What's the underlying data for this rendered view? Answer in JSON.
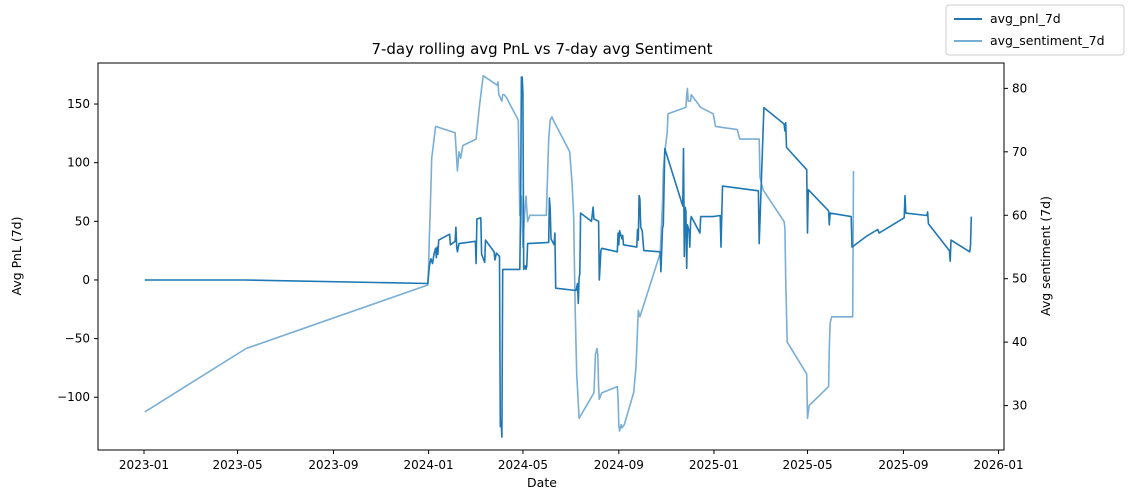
{
  "chart_data": {
    "type": "line",
    "title": "7-day rolling avg PnL vs 7-day avg Sentiment",
    "xlabel": "Date",
    "ylabel": "Avg PnL (7d)",
    "y2label": "Avg sentiment (7d)",
    "xlim": [
      "2022-11-03",
      "2026-01-08"
    ],
    "ylim": [
      -145,
      185
    ],
    "y2lim": [
      23,
      84
    ],
    "x_ticks": [
      "2023-01",
      "2023-05",
      "2023-09",
      "2024-01",
      "2024-05",
      "2024-09",
      "2025-01",
      "2025-05",
      "2025-09",
      "2026-01"
    ],
    "y_ticks": [
      -100,
      -50,
      0,
      50,
      100,
      150
    ],
    "y2_ticks": [
      30,
      40,
      50,
      60,
      70,
      80
    ],
    "grid": false,
    "legend_position": "upper-right-outside",
    "colors": {
      "avg_pnl_7d": "#1f77b4",
      "avg_sentiment_7d": "#79aed6"
    },
    "series": [
      {
        "name": "avg_pnl_7d",
        "axis": "left",
        "color": "#1f77b4",
        "points": [
          [
            "2023-01-02",
            0
          ],
          [
            "2023-05-10",
            0
          ],
          [
            "2023-12-31",
            -3
          ],
          [
            "2024-01-02",
            12
          ],
          [
            "2024-01-04",
            18
          ],
          [
            "2024-01-06",
            14
          ],
          [
            "2024-01-08",
            22
          ],
          [
            "2024-01-10",
            27
          ],
          [
            "2024-01-11",
            19
          ],
          [
            "2024-01-12",
            28
          ],
          [
            "2024-01-13",
            22
          ],
          [
            "2024-01-14",
            34
          ],
          [
            "2024-01-28",
            39
          ],
          [
            "2024-01-29",
            30
          ],
          [
            "2024-02-04",
            33
          ],
          [
            "2024-02-05",
            45
          ],
          [
            "2024-02-06",
            28
          ],
          [
            "2024-02-07",
            24
          ],
          [
            "2024-02-09",
            31
          ],
          [
            "2024-03-01",
            33
          ],
          [
            "2024-03-02",
            14
          ],
          [
            "2024-03-03",
            52
          ],
          [
            "2024-03-08",
            53
          ],
          [
            "2024-03-09",
            22
          ],
          [
            "2024-03-13",
            15
          ],
          [
            "2024-03-14",
            34
          ],
          [
            "2024-03-25",
            24
          ],
          [
            "2024-03-26",
            17
          ],
          [
            "2024-03-28",
            23
          ],
          [
            "2024-04-01",
            20
          ],
          [
            "2024-04-02",
            -125
          ],
          [
            "2024-04-03",
            -120
          ],
          [
            "2024-04-04",
            -134
          ],
          [
            "2024-04-05",
            9
          ],
          [
            "2024-04-27",
            9
          ],
          [
            "2024-04-28",
            60
          ],
          [
            "2024-04-29",
            173
          ],
          [
            "2024-04-30",
            173
          ],
          [
            "2024-05-01",
            160
          ],
          [
            "2024-05-02",
            9
          ],
          [
            "2024-05-04",
            12
          ],
          [
            "2024-05-05",
            9
          ],
          [
            "2024-05-06",
            12
          ],
          [
            "2024-05-07",
            31
          ],
          [
            "2024-06-03",
            32
          ],
          [
            "2024-06-04",
            70
          ],
          [
            "2024-06-05",
            60
          ],
          [
            "2024-06-06",
            35
          ],
          [
            "2024-06-10",
            30
          ],
          [
            "2024-06-11",
            40
          ],
          [
            "2024-06-12",
            -7
          ],
          [
            "2024-07-08",
            -9
          ],
          [
            "2024-07-10",
            -3
          ],
          [
            "2024-07-11",
            -20
          ],
          [
            "2024-07-12",
            2
          ],
          [
            "2024-07-13",
            5
          ],
          [
            "2024-07-14",
            57
          ],
          [
            "2024-07-28",
            50
          ],
          [
            "2024-07-30",
            62
          ],
          [
            "2024-07-31",
            52
          ],
          [
            "2024-08-06",
            50
          ],
          [
            "2024-08-07",
            0
          ],
          [
            "2024-08-09",
            25
          ],
          [
            "2024-08-10",
            27
          ],
          [
            "2024-08-30",
            24
          ],
          [
            "2024-08-31",
            40
          ],
          [
            "2024-09-01",
            30
          ],
          [
            "2024-09-02",
            42
          ],
          [
            "2024-09-05",
            35
          ],
          [
            "2024-09-06",
            38
          ],
          [
            "2024-09-07",
            30
          ],
          [
            "2024-09-24",
            28
          ],
          [
            "2024-09-25",
            43
          ],
          [
            "2024-09-26",
            34
          ],
          [
            "2024-09-27",
            72
          ],
          [
            "2024-09-28",
            69
          ],
          [
            "2024-09-29",
            45
          ],
          [
            "2024-10-01",
            42
          ],
          [
            "2024-10-03",
            25
          ],
          [
            "2024-10-24",
            24
          ],
          [
            "2024-10-25",
            7
          ],
          [
            "2024-10-27",
            44
          ],
          [
            "2024-10-28",
            47
          ],
          [
            "2024-10-30",
            112
          ],
          [
            "2024-11-22",
            63
          ],
          [
            "2024-11-23",
            112
          ],
          [
            "2024-11-24",
            20
          ],
          [
            "2024-11-25",
            62
          ],
          [
            "2024-11-26",
            59
          ],
          [
            "2024-11-27",
            10
          ],
          [
            "2024-11-28",
            47
          ],
          [
            "2024-11-30",
            42
          ],
          [
            "2024-12-01",
            28
          ],
          [
            "2024-12-02",
            50
          ],
          [
            "2024-12-03",
            54
          ],
          [
            "2024-12-14",
            40
          ],
          [
            "2024-12-15",
            54
          ],
          [
            "2024-12-31",
            54
          ],
          [
            "2025-01-09",
            55
          ],
          [
            "2025-01-10",
            28
          ],
          [
            "2025-01-11",
            56
          ],
          [
            "2025-01-12",
            80
          ],
          [
            "2025-02-27",
            76
          ],
          [
            "2025-02-28",
            31
          ],
          [
            "2025-03-06",
            147
          ],
          [
            "2025-04-01",
            133
          ],
          [
            "2025-04-02",
            127
          ],
          [
            "2025-04-03",
            134
          ],
          [
            "2025-04-04",
            113
          ],
          [
            "2025-04-30",
            94
          ],
          [
            "2025-05-01",
            40
          ],
          [
            "2025-05-02",
            77
          ],
          [
            "2025-05-28",
            59
          ],
          [
            "2025-05-29",
            47
          ],
          [
            "2025-05-30",
            57
          ],
          [
            "2025-06-26",
            54
          ],
          [
            "2025-06-27",
            28
          ],
          [
            "2025-07-15",
            37
          ],
          [
            "2025-07-30",
            43
          ],
          [
            "2025-08-01",
            40
          ],
          [
            "2025-09-02",
            53
          ],
          [
            "2025-09-03",
            72
          ],
          [
            "2025-09-04",
            57
          ],
          [
            "2025-10-01",
            55
          ],
          [
            "2025-10-02",
            58
          ],
          [
            "2025-10-03",
            48
          ],
          [
            "2025-10-30",
            25
          ],
          [
            "2025-10-31",
            16
          ],
          [
            "2025-11-01",
            34
          ],
          [
            "2025-11-25",
            24
          ],
          [
            "2025-11-26",
            29
          ],
          [
            "2025-11-27",
            54
          ]
        ]
      },
      {
        "name": "avg_sentiment_7d",
        "axis": "right",
        "color": "#79aed6",
        "points": [
          [
            "2023-01-02",
            29
          ],
          [
            "2023-05-12",
            39
          ],
          [
            "2023-12-31",
            49
          ],
          [
            "2024-01-01",
            52
          ],
          [
            "2024-01-02",
            57
          ],
          [
            "2024-01-03",
            60
          ],
          [
            "2024-01-05",
            69
          ],
          [
            "2024-01-07",
            71
          ],
          [
            "2024-01-10",
            74
          ],
          [
            "2024-02-04",
            73
          ],
          [
            "2024-02-07",
            67
          ],
          [
            "2024-02-09",
            70
          ],
          [
            "2024-02-11",
            69
          ],
          [
            "2024-02-14",
            71
          ],
          [
            "2024-03-02",
            72
          ],
          [
            "2024-03-06",
            77
          ],
          [
            "2024-03-09",
            80
          ],
          [
            "2024-03-11",
            82
          ],
          [
            "2024-03-29",
            80.5
          ],
          [
            "2024-03-30",
            81
          ],
          [
            "2024-03-31",
            79
          ],
          [
            "2024-04-04",
            78
          ],
          [
            "2024-04-05",
            79
          ],
          [
            "2024-04-07",
            79
          ],
          [
            "2024-04-10",
            78.5
          ],
          [
            "2024-04-25",
            75
          ],
          [
            "2024-04-27",
            60
          ],
          [
            "2024-04-29",
            63
          ],
          [
            "2024-05-01",
            55
          ],
          [
            "2024-05-03",
            60
          ],
          [
            "2024-05-05",
            63
          ],
          [
            "2024-05-07",
            59
          ],
          [
            "2024-05-10",
            60
          ],
          [
            "2024-05-31",
            60
          ],
          [
            "2024-06-03",
            72
          ],
          [
            "2024-06-05",
            75
          ],
          [
            "2024-06-07",
            75.5
          ],
          [
            "2024-06-09",
            75
          ],
          [
            "2024-06-30",
            70
          ],
          [
            "2024-07-03",
            65
          ],
          [
            "2024-07-05",
            60
          ],
          [
            "2024-07-07",
            45
          ],
          [
            "2024-07-09",
            35
          ],
          [
            "2024-07-12",
            28
          ],
          [
            "2024-07-31",
            32
          ],
          [
            "2024-08-01",
            35
          ],
          [
            "2024-08-02",
            38
          ],
          [
            "2024-08-04",
            39
          ],
          [
            "2024-08-05",
            38
          ],
          [
            "2024-08-06",
            33
          ],
          [
            "2024-08-07",
            31
          ],
          [
            "2024-08-10",
            32
          ],
          [
            "2024-08-30",
            33
          ],
          [
            "2024-08-31",
            31
          ],
          [
            "2024-09-01",
            27
          ],
          [
            "2024-09-02",
            26
          ],
          [
            "2024-09-04",
            27
          ],
          [
            "2024-09-05",
            26.5
          ],
          [
            "2024-09-08",
            27
          ],
          [
            "2024-09-20",
            32
          ],
          [
            "2024-09-23",
            36
          ],
          [
            "2024-09-25",
            42
          ],
          [
            "2024-09-26",
            45
          ],
          [
            "2024-09-28",
            44
          ],
          [
            "2024-10-24",
            54
          ],
          [
            "2024-10-27",
            62
          ],
          [
            "2024-10-28",
            67
          ],
          [
            "2024-10-30",
            70
          ],
          [
            "2024-11-02",
            73
          ],
          [
            "2024-11-03",
            76
          ],
          [
            "2024-11-26",
            77
          ],
          [
            "2024-11-27",
            79
          ],
          [
            "2024-11-28",
            80
          ],
          [
            "2024-11-29",
            78
          ],
          [
            "2024-12-02",
            78
          ],
          [
            "2024-12-03",
            79
          ],
          [
            "2024-12-15",
            77
          ],
          [
            "2024-12-31",
            76
          ],
          [
            "2025-01-03",
            74
          ],
          [
            "2025-01-31",
            73.5
          ],
          [
            "2025-02-03",
            72
          ],
          [
            "2025-02-28",
            72
          ],
          [
            "2025-03-01",
            66
          ],
          [
            "2025-03-03",
            65
          ],
          [
            "2025-03-05",
            64
          ],
          [
            "2025-04-01",
            59
          ],
          [
            "2025-04-02",
            58
          ],
          [
            "2025-04-03",
            50
          ],
          [
            "2025-04-05",
            40
          ],
          [
            "2025-04-30",
            35
          ],
          [
            "2025-05-01",
            28
          ],
          [
            "2025-05-03",
            30
          ],
          [
            "2025-05-28",
            33
          ],
          [
            "2025-05-29",
            39
          ],
          [
            "2025-05-30",
            43
          ],
          [
            "2025-06-01",
            44
          ],
          [
            "2025-06-03",
            44
          ],
          [
            "2025-06-28",
            44
          ],
          [
            "2025-06-29",
            67
          ]
        ]
      }
    ]
  }
}
